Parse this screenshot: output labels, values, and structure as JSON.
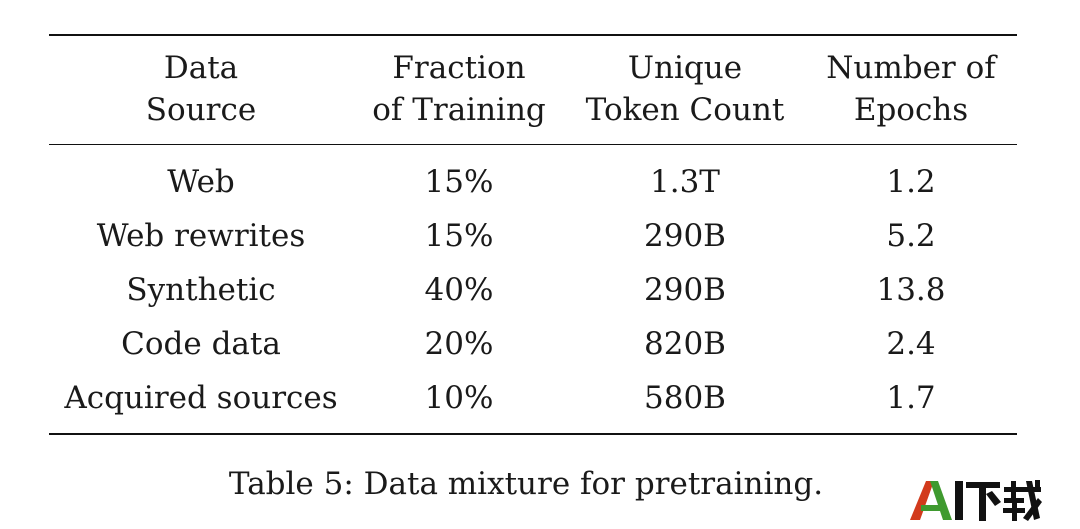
{
  "table": {
    "headers": [
      [
        "Data",
        "Source"
      ],
      [
        "Fraction",
        "of Training"
      ],
      [
        "Unique",
        "Token Count"
      ],
      [
        "Number of",
        "Epochs"
      ]
    ],
    "rows": [
      [
        "Web",
        "15%",
        "1.3T",
        "1.2"
      ],
      [
        "Web rewrites",
        "15%",
        "290B",
        "5.2"
      ],
      [
        "Synthetic",
        "40%",
        "290B",
        "13.8"
      ],
      [
        "Code data",
        "20%",
        "820B",
        "2.4"
      ],
      [
        "Acquired sources",
        "10%",
        "580B",
        "1.7"
      ]
    ]
  },
  "caption": "Table 5: Data mixture for pretraining.",
  "watermark": {
    "text": "AI下载",
    "colors": {
      "a_left": "#d23a1c",
      "a_right": "#3f9a2f",
      "rest": "#111111"
    }
  }
}
